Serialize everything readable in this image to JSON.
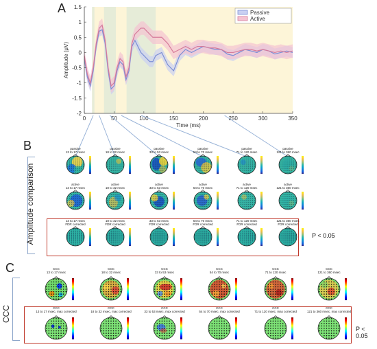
{
  "panel_a": {
    "letter": "A",
    "chart_data": {
      "type": "line",
      "ylabel": "Amplitude (μV)",
      "xlabel": "Time (ms)",
      "xlim": [
        0,
        350
      ],
      "ylim": [
        -2,
        1.5
      ],
      "xticks": [
        "0",
        "50",
        "100",
        "150",
        "200",
        "250",
        "300",
        "350"
      ],
      "yticks": [
        "1.5",
        "1",
        "0.5",
        "0",
        "-0.5",
        "-1",
        "-1.5",
        "-2"
      ],
      "legend": [
        "Passive",
        "Active"
      ],
      "legend_position": "top-right",
      "colors": {
        "passive": "#7b8fd6",
        "active": "#d67b9a",
        "passive_band": "#c9d0f2",
        "active_band": "#f4c3d2",
        "shade_yellow": "#fdf5d8",
        "shade_green": "#e6ecd8"
      },
      "windows_ms": [
        [
          13,
          17
        ],
        [
          18,
          32
        ],
        [
          33,
          53
        ],
        [
          54,
          70
        ],
        [
          71,
          120
        ],
        [
          121,
          350
        ]
      ],
      "series": [
        {
          "name": "Passive",
          "x": [
            0,
            5,
            10,
            15,
            20,
            25,
            30,
            35,
            40,
            45,
            50,
            55,
            60,
            65,
            70,
            75,
            80,
            85,
            90,
            95,
            100,
            105,
            110,
            115,
            120,
            130,
            140,
            150,
            160,
            170,
            180,
            190,
            200,
            210,
            220,
            230,
            240,
            250,
            260,
            270,
            280,
            290,
            300,
            310,
            320,
            330,
            340,
            350
          ],
          "y": [
            -0.2,
            -0.8,
            -1.1,
            -0.6,
            0.2,
            0.7,
            0.75,
            0.3,
            -0.6,
            -1.2,
            -1.1,
            -0.6,
            -0.3,
            -0.4,
            -0.9,
            -0.6,
            0.2,
            0.4,
            0.2,
            0.0,
            -0.1,
            -0.2,
            -0.3,
            -0.3,
            -0.1,
            0.0,
            -0.4,
            -0.6,
            -0.1,
            0.1,
            0.0,
            0.1,
            0.2,
            0.15,
            0.1,
            0.1,
            -0.05,
            -0.1,
            0.0,
            0.1,
            0.05,
            0.0,
            0.1,
            0.05,
            -0.05,
            0.0,
            0.05,
            0.0
          ]
        },
        {
          "name": "Active",
          "x": [
            0,
            5,
            10,
            15,
            20,
            25,
            30,
            35,
            40,
            45,
            50,
            55,
            60,
            65,
            70,
            75,
            80,
            85,
            90,
            95,
            100,
            105,
            110,
            115,
            120,
            130,
            140,
            150,
            160,
            170,
            180,
            190,
            200,
            210,
            220,
            230,
            240,
            250,
            260,
            270,
            280,
            290,
            300,
            310,
            320,
            330,
            340,
            350
          ],
          "y": [
            -0.1,
            -0.7,
            -1.0,
            -0.5,
            0.3,
            0.8,
            0.9,
            0.4,
            -0.5,
            -1.1,
            -1.0,
            -0.5,
            -0.2,
            -0.3,
            -0.8,
            -0.5,
            0.3,
            0.6,
            0.7,
            0.8,
            0.8,
            0.7,
            0.6,
            0.5,
            0.5,
            0.5,
            0.3,
            0.0,
            0.1,
            0.2,
            0.1,
            0.2,
            0.2,
            0.15,
            0.15,
            0.1,
            0.0,
            0.0,
            0.05,
            0.1,
            0.1,
            0.05,
            0.1,
            0.05,
            0.0,
            0.05,
            0.0,
            0.05
          ]
        }
      ]
    }
  },
  "panel_b": {
    "letter": "B",
    "side_label": "Amplitude comparison",
    "pvalue": "P < 0.05",
    "rows": [
      {
        "labels": [
          "passive\n13 to 17 msec",
          "passive\n18 to 32 msec",
          "passive\n33 to 53 msec",
          "passive\n54 to 70 msec",
          "passive\n71 to 120 msec",
          "passive\n121 to 360 msec"
        ]
      },
      {
        "labels": [
          "active\n13 to 17 msec",
          "active\n18 to 32 msec",
          "active\n33 to 53 msec",
          "active\n54 to 70 msec",
          "active\n71 to 120 msec",
          "active\n121 to 360 msec"
        ]
      },
      {
        "labels": [
          "13 to 17 msec\nFDR corrected",
          "18 to 32 msec\nFDR corrected",
          "33 to 53 msec\nFDR corrected",
          "54 to 70 msec\nFDR corrected",
          "71 to 120 msec\nFDR corrected",
          "121 to 360 msec\nFDR corrected"
        ]
      }
    ]
  },
  "panel_c": {
    "letter": "C",
    "side_label": "CCC",
    "pvalue": "P < 0.05",
    "rows": [
      {
        "labels": [
          "CCC\n13 to 17 msec",
          "CCC\n18 to 32 msec",
          "CCC\n33 to 53 msec",
          "CCC\n54 to 70 msec",
          "CCC\n71 to 120 msec",
          "CCC\n121 to 360 msec"
        ]
      },
      {
        "labels": [
          "CCC\n13 to 17 msec, max corrected",
          "CCC\n18 to 32 msec, max corrected",
          "CCC\n33 to 53 msec, max corrected",
          "CCC\n54 to 70 msec, max corrected",
          "CCC\n71 to 120 msec, max corrected",
          "CCC\n121 to 360 msec, max corrected"
        ]
      }
    ]
  }
}
